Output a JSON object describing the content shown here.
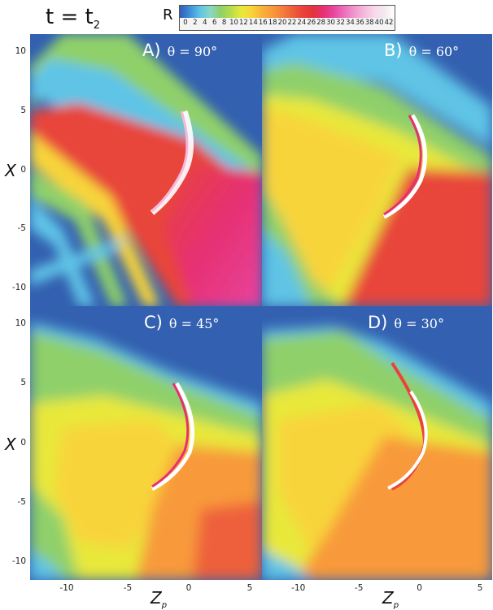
{
  "header": {
    "time_label": "t = t",
    "time_subscript": "2"
  },
  "colorbar": {
    "label": "R",
    "ticks": [
      "0",
      "2",
      "4",
      "6",
      "8",
      "10",
      "12",
      "14",
      "16",
      "18",
      "20",
      "22",
      "24",
      "26",
      "28",
      "30",
      "32",
      "34",
      "36",
      "38",
      "40",
      "42"
    ],
    "range": [
      0,
      42
    ],
    "colors": [
      "#2e5fb8",
      "#3f8fd8",
      "#5fc4e6",
      "#8ad8c4",
      "#8fd06a",
      "#b6dc4a",
      "#e8e83a",
      "#f8d43a",
      "#f8b43a",
      "#f89a3a",
      "#f4803a",
      "#ee603a",
      "#e8443a",
      "#e4343a",
      "#e63072",
      "#e8449e",
      "#ec6cbc",
      "#f094cc",
      "#f4b8dc",
      "#f8d8ea",
      "#f4e8f0",
      "#ffffff"
    ]
  },
  "chart_data": [
    {
      "type": "heatmap",
      "label": "A)",
      "angle": "θ = 90°",
      "xlabel": "Z_p",
      "ylabel": "X",
      "xlim": [
        -13,
        6
      ],
      "ylim": [
        -11.5,
        11.5
      ],
      "x_ticks": [
        "-10",
        "-5",
        "0",
        "5"
      ],
      "y_ticks": [
        "10",
        "5",
        "0",
        "-5",
        "-10"
      ],
      "colormap_variable": "R",
      "background": "#3360b0",
      "regions": [
        {
          "name": "outer-green-band",
          "R": 10
        },
        {
          "name": "light-blue-band",
          "R": 4
        },
        {
          "name": "inner-band",
          "R": 26
        },
        {
          "name": "downstream-wake",
          "R": 32
        },
        {
          "name": "bow-shock",
          "R": 40
        }
      ]
    },
    {
      "type": "heatmap",
      "label": "B)",
      "angle": "θ = 60°",
      "xlabel": "Z_p",
      "ylabel": "X",
      "xlim": [
        -13,
        6
      ],
      "ylim": [
        -11.5,
        11.5
      ],
      "x_ticks": [
        "-10",
        "-5",
        "0",
        "5"
      ],
      "y_ticks": [
        "10",
        "5",
        "0",
        "-5",
        "-10"
      ],
      "colormap_variable": "R",
      "background": "#3360b0",
      "regions": [
        {
          "name": "outer-band",
          "R": 6
        },
        {
          "name": "green-band",
          "R": 10
        },
        {
          "name": "yellow-region",
          "R": 15
        },
        {
          "name": "downstream-wake",
          "R": 26
        },
        {
          "name": "bow-shock",
          "R": 38
        }
      ]
    },
    {
      "type": "heatmap",
      "label": "C)",
      "angle": "θ = 45°",
      "xlabel": "Z_p",
      "ylabel": "X",
      "xlim": [
        -13,
        6
      ],
      "ylim": [
        -11.5,
        11.5
      ],
      "x_ticks": [
        "-10",
        "-5",
        "0",
        "5"
      ],
      "y_ticks": [
        "10",
        "5",
        "0",
        "-5",
        "-10"
      ],
      "colormap_variable": "R",
      "background": "#3360b0",
      "regions": [
        {
          "name": "upper-blue",
          "R": 2
        },
        {
          "name": "green-region",
          "R": 10
        },
        {
          "name": "yellow-region",
          "R": 15
        },
        {
          "name": "orange-wake",
          "R": 20
        },
        {
          "name": "bow-shock",
          "R": 36
        }
      ]
    },
    {
      "type": "heatmap",
      "label": "D)",
      "angle": "θ = 30°",
      "xlabel": "Z_p",
      "ylabel": "X",
      "xlim": [
        -13,
        6
      ],
      "ylim": [
        -11.5,
        11.5
      ],
      "x_ticks": [
        "-10",
        "-5",
        "0",
        "5"
      ],
      "y_ticks": [
        "10",
        "5",
        "0",
        "-5",
        "-10"
      ],
      "colormap_variable": "R",
      "background": "#3360b0",
      "regions": [
        {
          "name": "upper-blue",
          "R": 2
        },
        {
          "name": "green-region",
          "R": 10
        },
        {
          "name": "yellow-region",
          "R": 15
        },
        {
          "name": "orange-wake",
          "R": 19
        },
        {
          "name": "bow-shock",
          "R": 34
        }
      ]
    }
  ]
}
